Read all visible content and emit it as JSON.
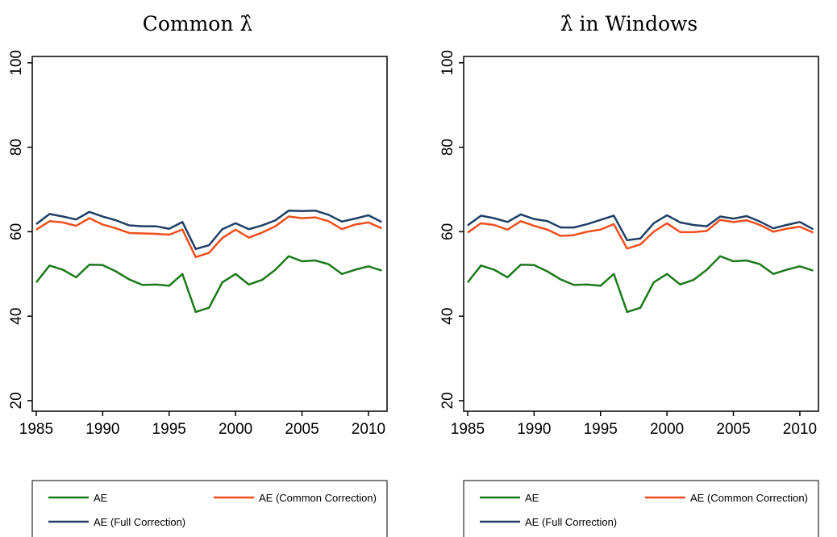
{
  "chart_data": [
    {
      "type": "line",
      "title": "Common λ̂",
      "x": [
        1985,
        1986,
        1987,
        1988,
        1989,
        1990,
        1991,
        1992,
        1993,
        1994,
        1995,
        1996,
        1997,
        1998,
        1999,
        2000,
        2001,
        2002,
        2003,
        2004,
        2005,
        2006,
        2007,
        2008,
        2009,
        2010,
        2011
      ],
      "series": [
        {
          "name": "AE",
          "color": "#1b7a1b",
          "values": [
            48,
            52,
            51,
            49.2,
            52.2,
            52.1,
            50.6,
            48.7,
            47.4,
            47.5,
            47.2,
            50,
            41,
            42,
            48,
            50,
            47.5,
            48.6,
            51,
            54.2,
            53,
            53.2,
            52.3,
            50,
            51,
            51.8,
            50.8
          ]
        },
        {
          "name": "AE (Common Correction)",
          "color": "#f04e1c",
          "values": [
            60.5,
            62.5,
            62.2,
            61.4,
            63.2,
            61.7,
            60.8,
            59.7,
            59.6,
            59.5,
            59.3,
            60.5,
            54,
            55,
            58.5,
            60.5,
            58.6,
            59.8,
            61.3,
            63.6,
            63.2,
            63.4,
            62.5,
            60.6,
            61.7,
            62.2,
            60.8
          ]
        },
        {
          "name": "AE (Full Correction)",
          "color": "#1f3f66",
          "values": [
            61.8,
            64.2,
            63.6,
            62.9,
            64.7,
            63.6,
            62.7,
            61.5,
            61.3,
            61.3,
            60.7,
            62.3,
            55.9,
            56.8,
            60.6,
            62,
            60.6,
            61.5,
            62.7,
            65,
            64.9,
            65,
            64,
            62.4,
            63.1,
            63.9,
            62.3
          ]
        }
      ],
      "xlim": [
        1984.7,
        2011.4
      ],
      "xticks": [
        1985,
        1990,
        1995,
        2000,
        2005,
        2010
      ],
      "ylim": [
        17.5,
        101.5
      ],
      "yticks": [
        20,
        40,
        60,
        80,
        100
      ]
    },
    {
      "type": "line",
      "title": "λ̂ in Windows",
      "x": [
        1985,
        1986,
        1987,
        1988,
        1989,
        1990,
        1991,
        1992,
        1993,
        1994,
        1995,
        1996,
        1997,
        1998,
        1999,
        2000,
        2001,
        2002,
        2003,
        2004,
        2005,
        2006,
        2007,
        2008,
        2009,
        2010,
        2011
      ],
      "series": [
        {
          "name": "AE",
          "color": "#1b7a1b",
          "values": [
            48,
            52,
            51,
            49.2,
            52.2,
            52.1,
            50.6,
            48.7,
            47.4,
            47.5,
            47.2,
            50,
            41,
            42,
            48,
            50,
            47.5,
            48.6,
            51,
            54.2,
            53,
            53.2,
            52.3,
            50,
            51,
            51.8,
            50.8
          ]
        },
        {
          "name": "AE (Common Correction)",
          "color": "#f04e1c",
          "values": [
            59.8,
            62,
            61.6,
            60.5,
            62.5,
            61.4,
            60.5,
            59,
            59.2,
            60,
            60.5,
            61.8,
            56,
            57,
            60,
            62,
            59.9,
            59.9,
            60.2,
            62.8,
            62.3,
            62.7,
            61.6,
            60,
            60.7,
            61.2,
            59.8
          ]
        },
        {
          "name": "AE (Full Correction)",
          "color": "#1f3f66",
          "values": [
            61.5,
            63.8,
            63.2,
            62.3,
            64.1,
            63,
            62.5,
            61,
            61,
            61.8,
            62.8,
            63.8,
            58,
            58.4,
            62,
            63.9,
            62.2,
            61.6,
            61.3,
            63.6,
            63.1,
            63.7,
            62.4,
            60.8,
            61.6,
            62.3,
            60.6
          ]
        }
      ],
      "xlim": [
        1984.7,
        2011.4
      ],
      "xticks": [
        1985,
        1990,
        1995,
        2000,
        2005,
        2010
      ],
      "ylim": [
        17.5,
        101.5
      ],
      "yticks": [
        20,
        40,
        60,
        80,
        100
      ]
    }
  ]
}
